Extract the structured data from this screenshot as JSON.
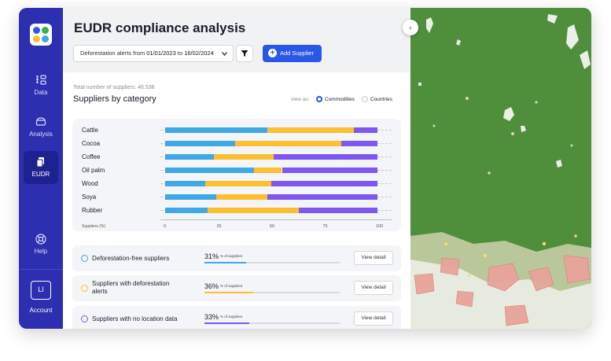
{
  "sidebar": {
    "items": [
      {
        "label": "Data",
        "icon": "data-icon"
      },
      {
        "label": "Analysis",
        "icon": "analysis-icon"
      },
      {
        "label": "EUDR",
        "icon": "eudr-icon",
        "active": true
      },
      {
        "label": "Help",
        "icon": "help-icon"
      }
    ],
    "account": {
      "initials": "LI",
      "label": "Account"
    }
  },
  "header": {
    "title": "EUDR compliance analysis",
    "filter": {
      "prefix": "Deforestation alerts from",
      "from": "01/01/2023",
      "to_word": "to",
      "to": "16/02/2024"
    },
    "add_supplier_label": "Add Supplier"
  },
  "summary": {
    "total_text": "Total number of suppliers: 46.538",
    "subtitle": "Suppliers by category",
    "view_as_label": "view as:",
    "options": [
      {
        "label": "Commodities",
        "selected": true
      },
      {
        "label": "Countries",
        "selected": false
      }
    ]
  },
  "colors": {
    "free": "#3fa9e6",
    "alerts": "#fcbf32",
    "no_location": "#7d57f0"
  },
  "chart_data": {
    "type": "bar",
    "orientation": "horizontal",
    "stacked": true,
    "categories": [
      "Cattle",
      "Cocoa",
      "Coffee",
      "Oil palm",
      "Wood",
      "Soya",
      "Rubber"
    ],
    "series": [
      {
        "values": [
          48,
          33,
          23,
          42,
          19,
          24,
          20
        ]
      },
      {
        "values": [
          41,
          50,
          28,
          13,
          31,
          24,
          43
        ]
      },
      {
        "values": [
          11,
          17,
          49,
          45,
          50,
          52,
          37
        ]
      }
    ],
    "xlabel": "Suppliers (%)",
    "xlim": [
      0,
      100
    ],
    "ticks": [
      "0",
      "25",
      "50",
      "75",
      "100"
    ]
  },
  "cards": [
    {
      "label": "Deforestation-free suppliers",
      "percent": "31%",
      "percent_label": "% of suppliers",
      "value": 31,
      "color": "#3fa9e6",
      "button": "View detail"
    },
    {
      "label": "Suppliers with deforestation alerts",
      "percent": "36%",
      "percent_label": "% of suppliers",
      "value": 36,
      "color": "#fcbf32",
      "button": "View detail"
    },
    {
      "label": "Suppliers with no location data",
      "percent": "33%",
      "percent_label": "% of suppliers",
      "value": 33,
      "color": "#7d57f0",
      "button": "View detail"
    }
  ],
  "map": {
    "collapse_icon": "chevron-left-icon"
  }
}
